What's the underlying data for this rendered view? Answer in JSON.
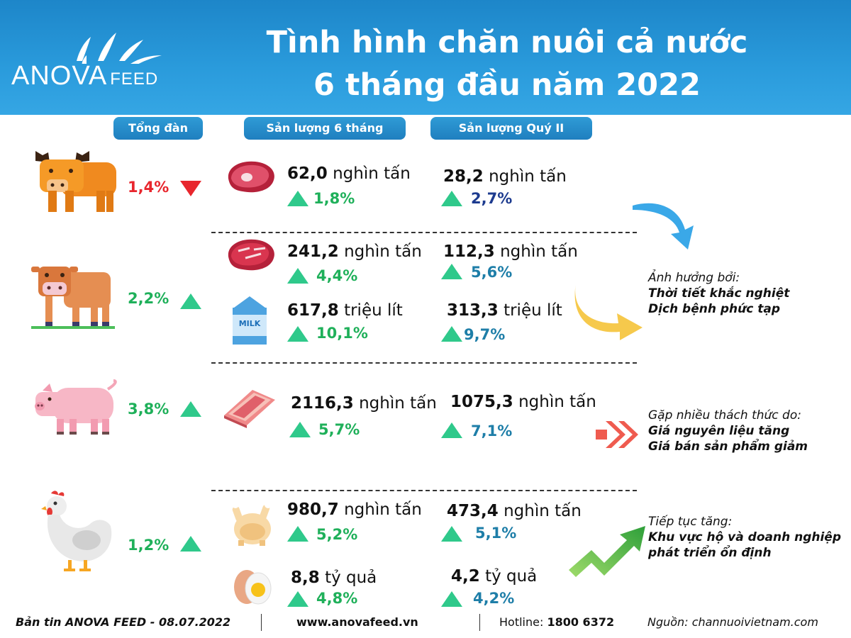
{
  "brand": {
    "name": "ANOVA",
    "suffix": "FEED"
  },
  "title": {
    "line1": "Tình hình chăn nuôi cả nước",
    "line2": "6 tháng đầu năm 2022"
  },
  "columns": {
    "herd": "Tổng đàn",
    "six_month": "Sản lượng 6 tháng",
    "q2": "Sản lượng Quý II"
  },
  "colors": {
    "up": "#2fc98b",
    "down": "#e8262d",
    "header": "#2a9bdc"
  },
  "rows": {
    "buffalo": {
      "herd_pct": "1,4%",
      "herd_trend": "down",
      "meat": {
        "six_num": "62,0",
        "six_unit": "nghìn tấn",
        "six_pct": "1,8%",
        "q2_num": "28,2",
        "q2_unit": "nghìn tấn",
        "q2_pct": "2,7%"
      }
    },
    "cattle": {
      "herd_pct": "2,2%",
      "herd_trend": "up",
      "meat": {
        "six_num": "241,2",
        "six_unit": "nghìn tấn",
        "six_pct": "4,4%",
        "q2_num": "112,3",
        "q2_unit": "nghìn tấn",
        "q2_pct": "5,6%"
      },
      "milk": {
        "label": "MILK",
        "six_num": "617,8",
        "six_unit": "triệu lít",
        "six_pct": "10,1%",
        "q2_num": "313,3",
        "q2_unit": "triệu lít",
        "q2_pct": "9,7%"
      }
    },
    "pig": {
      "herd_pct": "3,8%",
      "herd_trend": "up",
      "meat": {
        "six_num": "2116,3",
        "six_unit": "nghìn tấn",
        "six_pct": "5,7%",
        "q2_num": "1075,3",
        "q2_unit": "nghìn tấn",
        "q2_pct": "7,1%"
      }
    },
    "poultry": {
      "herd_pct": "1,2%",
      "herd_trend": "up",
      "meat": {
        "six_num": "980,7",
        "six_unit": "nghìn tấn",
        "six_pct": "5,2%",
        "q2_num": "473,4",
        "q2_unit": "nghìn tấn",
        "q2_pct": "5,1%"
      },
      "egg": {
        "six_num": "8,8",
        "six_unit": "tỷ quả",
        "six_pct": "4,8%",
        "q2_num": "4,2",
        "q2_unit": "tỷ quả",
        "q2_pct": "4,2%"
      }
    }
  },
  "notes": {
    "n1": {
      "lead": "Ảnh hưởng bởi:",
      "l1": "Thời tiết khắc nghiệt",
      "l2": "Dịch bệnh phức tạp"
    },
    "n2": {
      "lead": "Gặp nhiều thách thức do:",
      "l1": "Giá nguyên liệu tăng",
      "l2": "Giá bán sản phẩm giảm"
    },
    "n3": {
      "lead": "Tiếp tục tăng:",
      "l1": "Khu vực hộ và doanh nghiệp",
      "l2": "phát triển ổn định"
    }
  },
  "footer": {
    "bulletin": "Bản tin ANOVA FEED - 08.07.2022",
    "website": "www.anovafeed.vn",
    "hotline_label": "Hotline:",
    "hotline_num": "1800 6372",
    "source_label": "Nguồn:",
    "source": "channuoivietnam.com"
  }
}
